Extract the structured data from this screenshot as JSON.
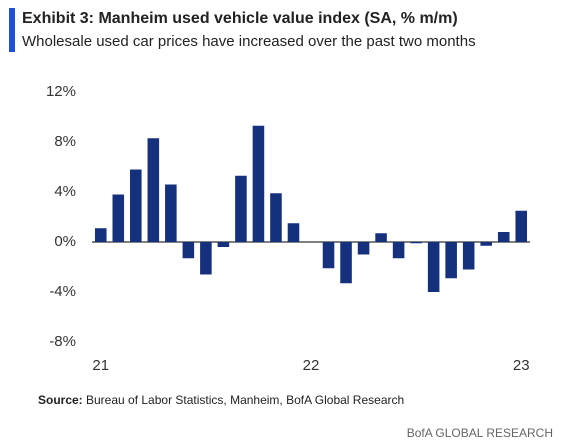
{
  "chart_data": {
    "type": "bar",
    "title": "Exhibit 3: Manheim used vehicle value index (SA, % m/m)",
    "subtitle": "Wholesale used car prices have increased over the past two months",
    "categories": [
      "21",
      null,
      null,
      null,
      null,
      null,
      null,
      null,
      null,
      null,
      null,
      null,
      "22",
      null,
      null,
      null,
      null,
      null,
      null,
      null,
      null,
      null,
      null,
      null,
      "23"
    ],
    "values": [
      1.1,
      3.8,
      5.8,
      8.3,
      4.6,
      -1.3,
      -2.6,
      -0.4,
      5.3,
      9.3,
      3.9,
      1.5,
      0,
      -2.1,
      -3.3,
      -1.0,
      0.7,
      -1.3,
      -0.1,
      -4.0,
      -2.9,
      -2.2,
      -0.3,
      0.8,
      2.5
    ],
    "color": "#15317e",
    "ylim": [
      -8,
      12
    ],
    "yticks": [
      {
        "value": -8,
        "label": "-8%"
      },
      {
        "value": -4,
        "label": "-4%"
      },
      {
        "value": 0,
        "label": "0%"
      },
      {
        "value": 4,
        "label": "4%"
      },
      {
        "value": 8,
        "label": "8%"
      },
      {
        "value": 12,
        "label": "12%"
      }
    ],
    "grid": false,
    "source_label": "Source:",
    "source": "Bureau of Labor Statistics, Manheim, BofA Global Research",
    "footer": "BofA GLOBAL RESEARCH"
  }
}
